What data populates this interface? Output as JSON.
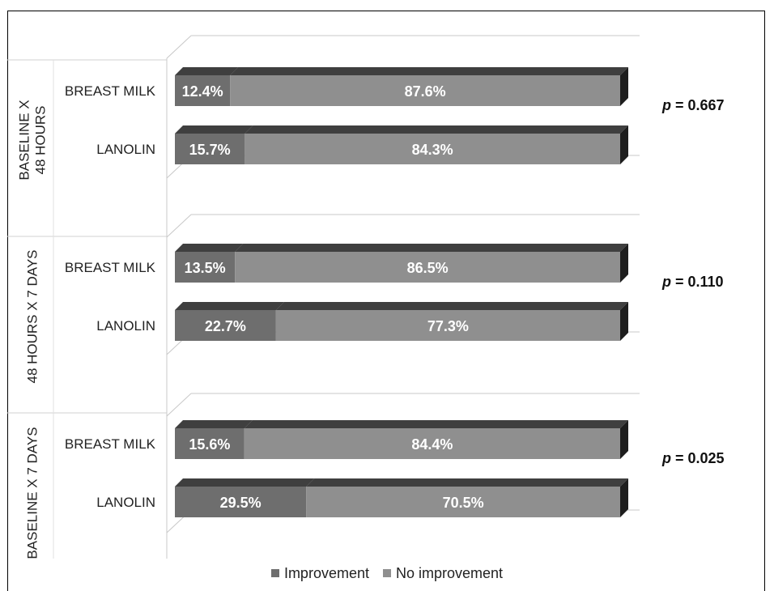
{
  "chart_data": {
    "type": "bar",
    "orientation": "horizontal",
    "stacked": true,
    "percent_stacked": true,
    "three_d": true,
    "xlim": [
      0,
      100
    ],
    "groups": [
      {
        "label_lines": [
          "BASELINE X",
          "48 HOURS"
        ],
        "p_prefix": "p",
        "p_value": "= 0.667",
        "bars": [
          {
            "category": "BREAST MILK",
            "values": [
              12.4,
              87.6
            ],
            "labels": [
              "12.4%",
              "87.6%"
            ]
          },
          {
            "category": "LANOLIN",
            "values": [
              15.7,
              84.3
            ],
            "labels": [
              "15.7%",
              "84.3%"
            ]
          }
        ]
      },
      {
        "label_lines": [
          "48 HOURS X 7 DAYS"
        ],
        "p_prefix": "p",
        "p_value": "= 0.110",
        "bars": [
          {
            "category": "BREAST MILK",
            "values": [
              13.5,
              86.5
            ],
            "labels": [
              "13.5%",
              "86.5%"
            ]
          },
          {
            "category": "LANOLIN",
            "values": [
              22.7,
              77.3
            ],
            "labels": [
              "22.7%",
              "77.3%"
            ]
          }
        ]
      },
      {
        "label_lines": [
          "BASELINE X 7 DAYS"
        ],
        "p_prefix": "p",
        "p_value": "= 0.025",
        "bars": [
          {
            "category": "BREAST MILK",
            "values": [
              15.6,
              84.4
            ],
            "labels": [
              "15.6%",
              "84.4%"
            ]
          },
          {
            "category": "LANOLIN",
            "values": [
              29.5,
              70.5
            ],
            "labels": [
              "29.5%",
              "70.5%"
            ]
          }
        ]
      }
    ],
    "series": [
      {
        "name": "Improvement",
        "color": "#6e6e6e"
      },
      {
        "name": "No improvement",
        "color": "#8f8f8f"
      }
    ],
    "legend": {
      "position": "bottom",
      "marker": "■"
    }
  }
}
